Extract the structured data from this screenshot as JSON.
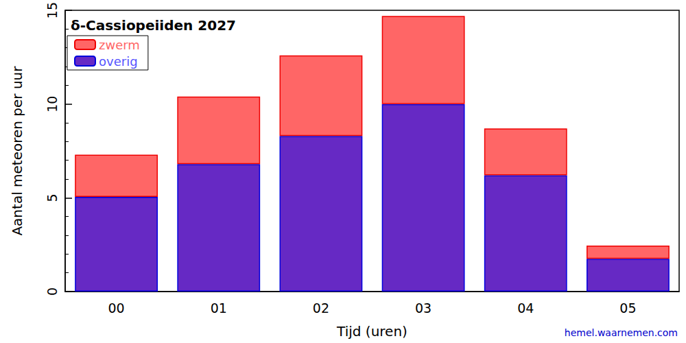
{
  "chart_data": {
    "type": "bar",
    "title": "δ-Cassiopeiiden 2027",
    "x_label": "Tijd (uren)",
    "y_label": "Aantal meteoren per uur",
    "categories": [
      "00",
      "01",
      "02",
      "03",
      "04",
      "05"
    ],
    "series": [
      {
        "name": "overig",
        "color": "#6629c4",
        "values": [
          5.05,
          6.8,
          8.3,
          10.0,
          6.2,
          1.75
        ]
      },
      {
        "name": "zwerm",
        "color": "#ff6666",
        "values": [
          2.25,
          3.6,
          4.3,
          4.7,
          2.5,
          0.7
        ]
      }
    ],
    "stacked": true,
    "ylim": [
      0,
      15
    ],
    "yticks": [
      0,
      5,
      10,
      15
    ],
    "grid": false,
    "legend": "upper left",
    "annotations": [
      "hemel.waarnemen.com"
    ]
  }
}
